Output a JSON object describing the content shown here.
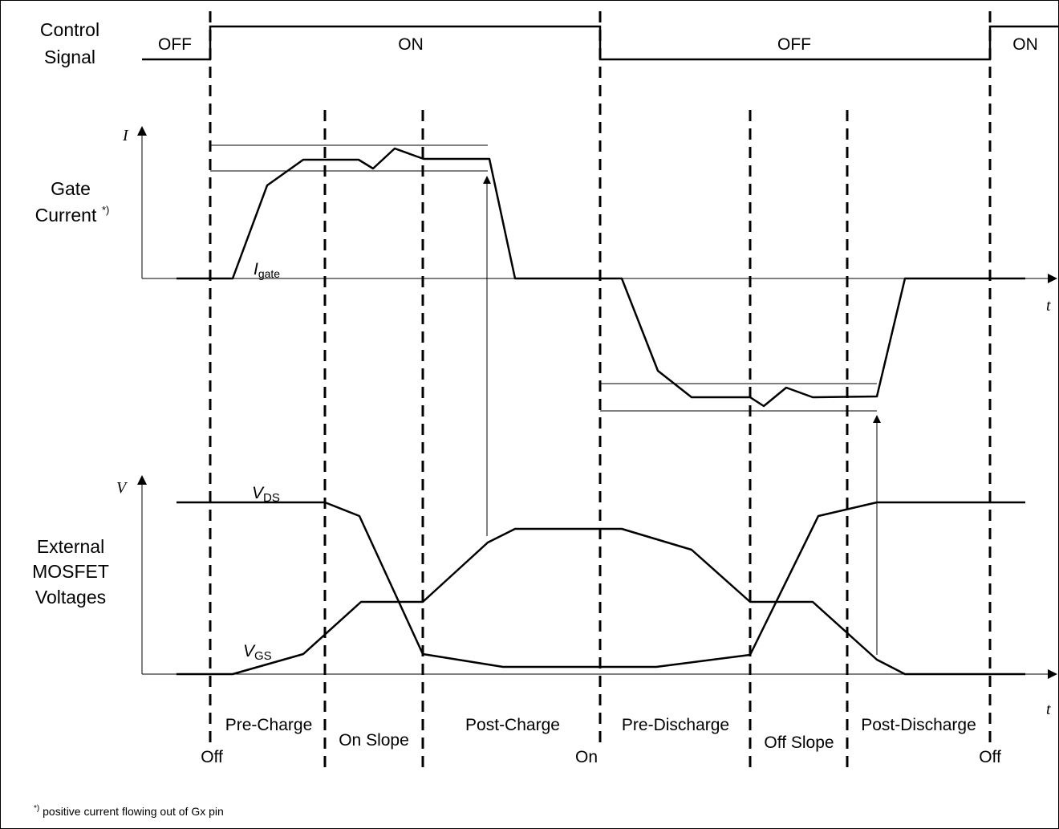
{
  "signal_labels": {
    "control_line1": "Control",
    "control_line2": "Signal",
    "gate_line1": "Gate",
    "gate_line2": "Current",
    "gate_footnote_mark": "*)",
    "ext_line1": "External",
    "ext_line2": "MOSFET",
    "ext_line3": "Voltages"
  },
  "control_states": [
    "OFF",
    "ON",
    "OFF",
    "ON"
  ],
  "axes": {
    "current_axis": "I",
    "voltage_axis": "V",
    "time_axis_top": "t",
    "time_axis_bottom": "t"
  },
  "traces": {
    "igate_main": "I",
    "igate_sub": "gate",
    "vds_main": "V",
    "vds_sub": "DS",
    "vgs_main": "V",
    "vgs_sub": "GS"
  },
  "phases": [
    "Pre-Charge",
    "On Slope",
    "Post-Charge",
    "Pre-Discharge",
    "Off Slope",
    "Post-Discharge"
  ],
  "transitions": [
    "Off",
    "On",
    "Off"
  ],
  "footnote": {
    "mark": "*)",
    "text": " positive current flowing out of Gx pin"
  }
}
